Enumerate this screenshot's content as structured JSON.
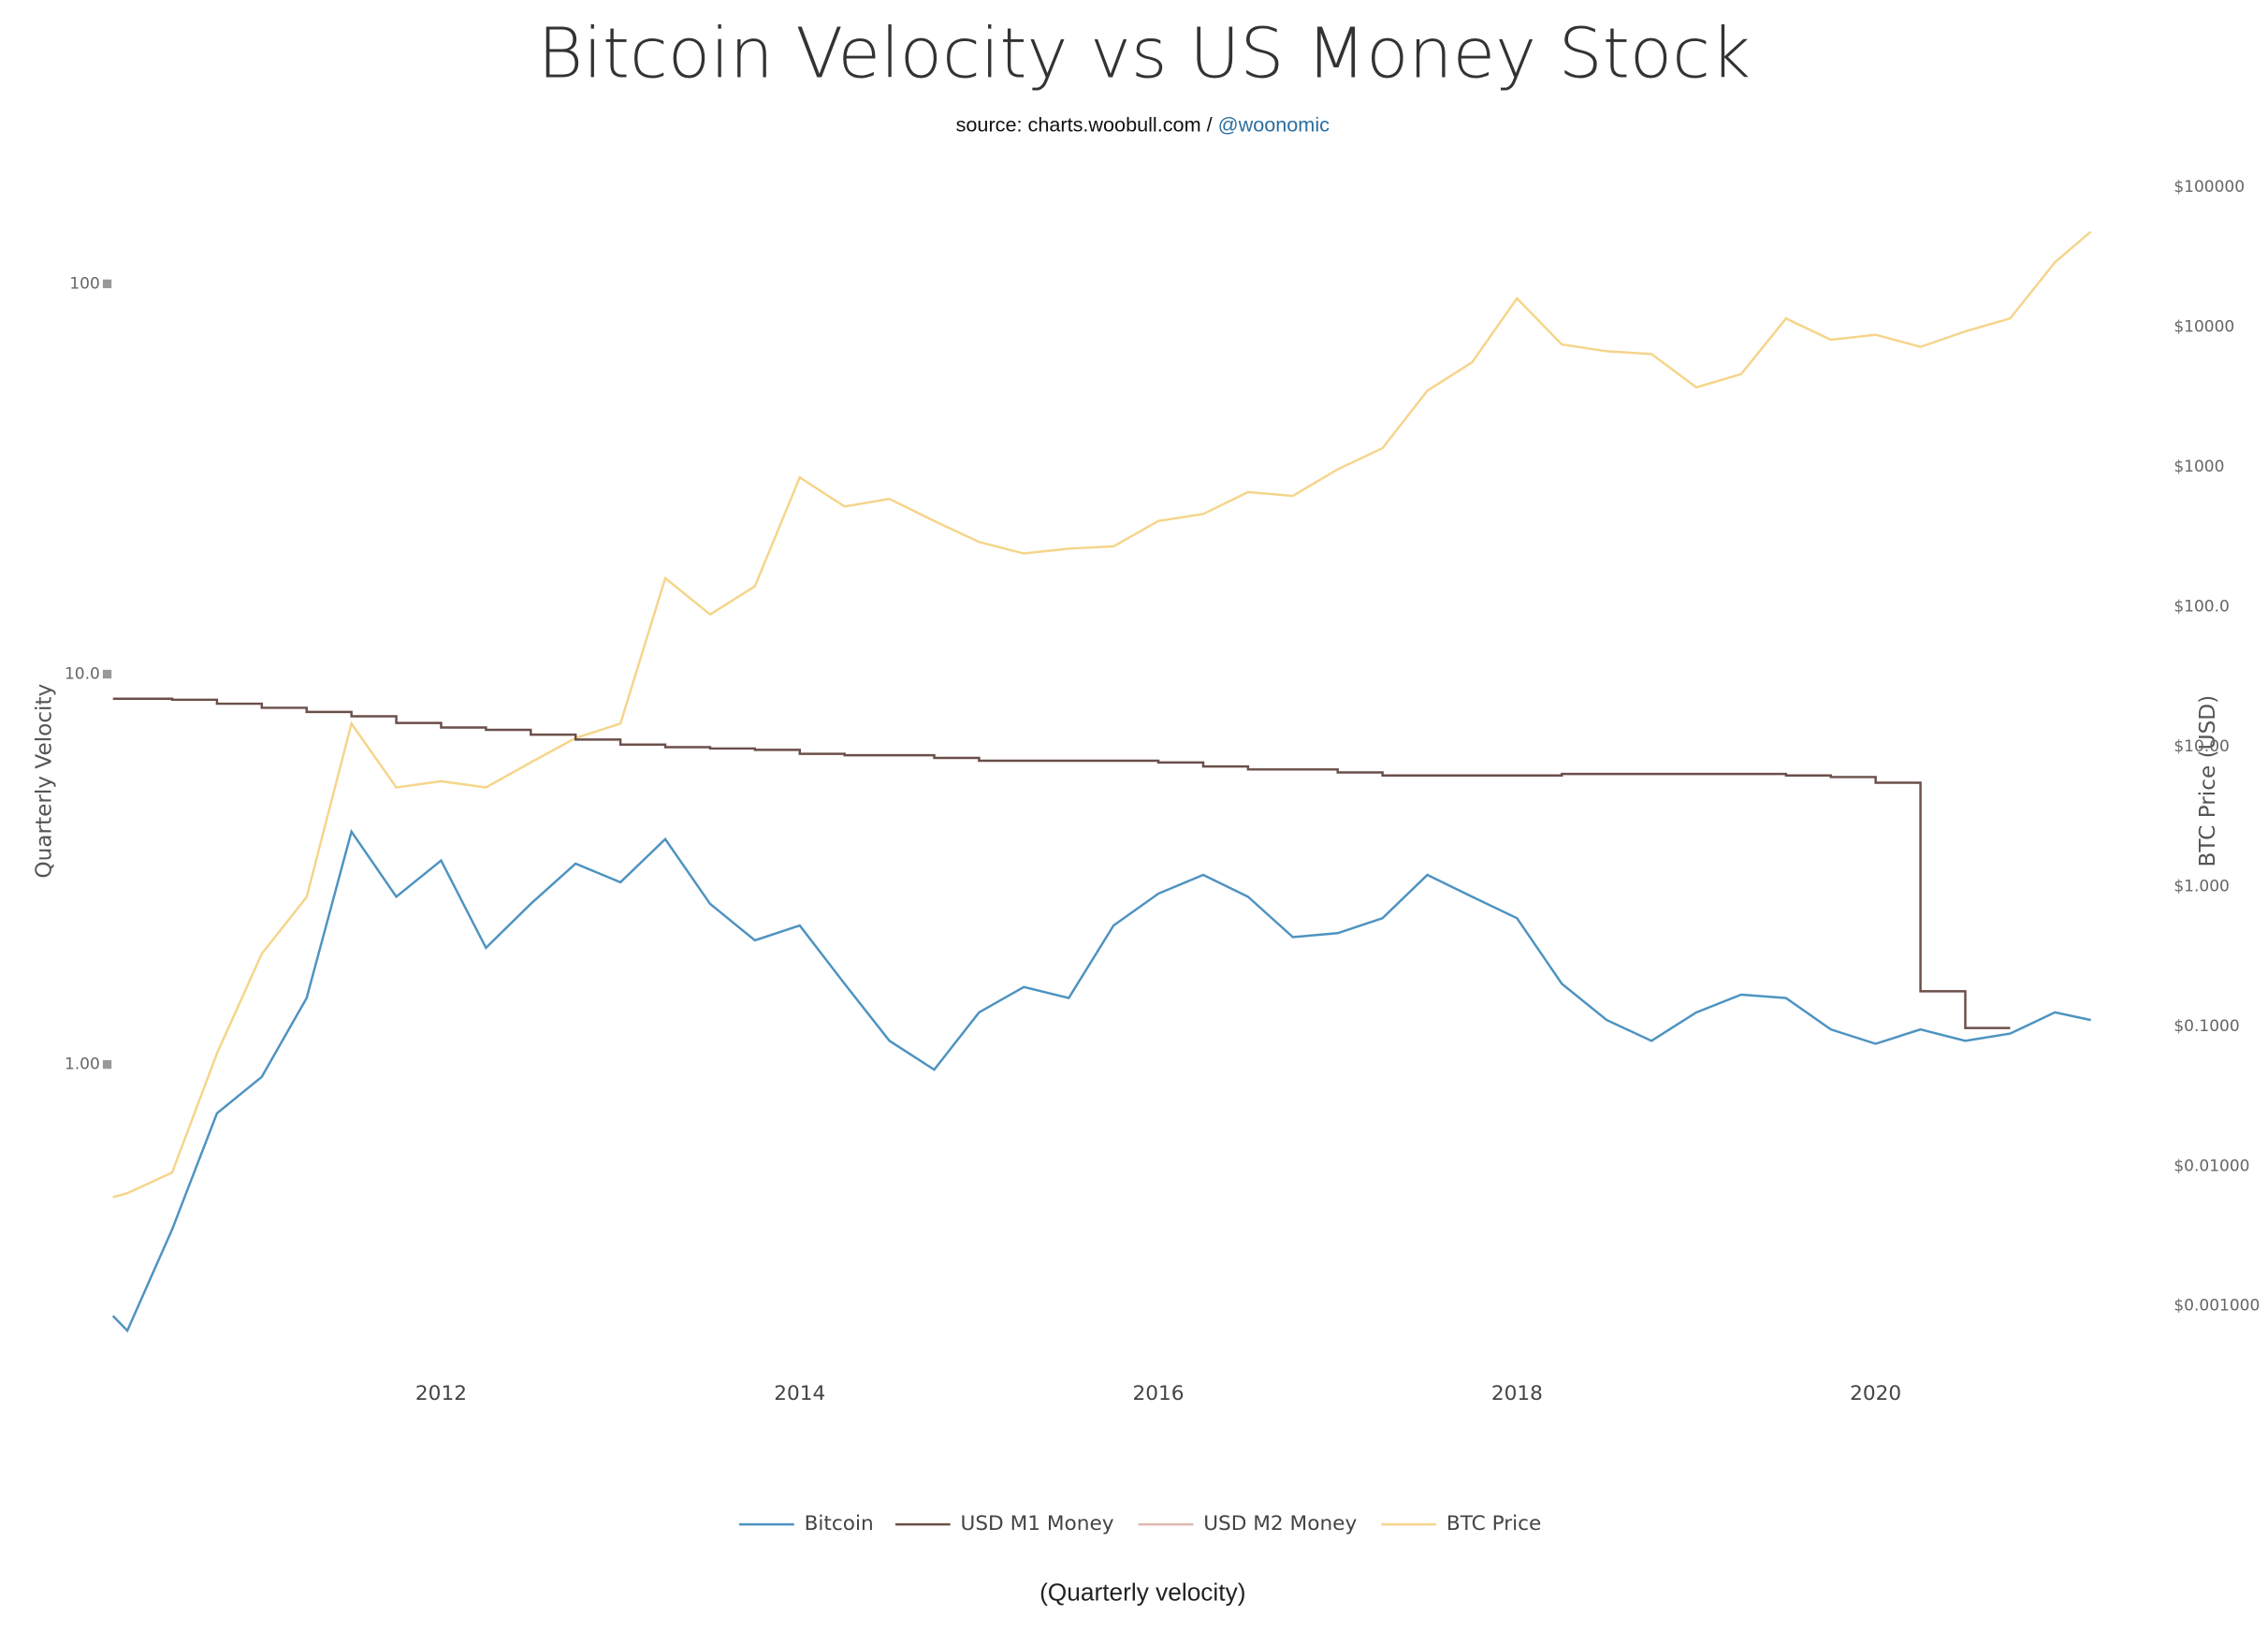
{
  "chart_data": {
    "type": "line",
    "title": "Bitcoin Velocity vs US Money Stock",
    "subtitle_source": "source: charts.woobull.com / ",
    "subtitle_handle": "@woonomic",
    "footer": "(Quarterly velocity)",
    "y_label": "Quarterly Velocity",
    "y2_label": "BTC Price (USD)",
    "log_y": true,
    "log_y2": true,
    "legend": "bottom",
    "x": [
      2010.17,
      2010.25,
      2010.5,
      2010.75,
      2011.0,
      2011.25,
      2011.5,
      2011.75,
      2012.0,
      2012.25,
      2012.5,
      2012.75,
      2013.0,
      2013.25,
      2013.5,
      2013.75,
      2014.0,
      2014.25,
      2014.5,
      2014.75,
      2015.0,
      2015.25,
      2015.5,
      2015.75,
      2016.0,
      2016.25,
      2016.5,
      2016.75,
      2017.0,
      2017.25,
      2017.5,
      2017.75,
      2018.0,
      2018.25,
      2018.5,
      2018.75,
      2019.0,
      2019.25,
      2019.5,
      2019.75,
      2020.0,
      2020.25,
      2020.5,
      2020.75,
      2021.0,
      2021.2
    ],
    "xlim": [
      2010.17,
      2021.3
    ],
    "xticks": [
      2012,
      2014,
      2016,
      2018,
      2020
    ],
    "ylim": [
      0.18,
      190
    ],
    "yticks": [
      {
        "value": 1,
        "label": "1.00"
      },
      {
        "value": 10,
        "label": "10.0"
      },
      {
        "value": 100,
        "label": "100"
      }
    ],
    "y2lim": [
      0.000445,
      122000
    ],
    "y2ticks": [
      {
        "value": 0.001,
        "label": "$0.001000"
      },
      {
        "value": 0.01,
        "label": "$0.01000"
      },
      {
        "value": 0.1,
        "label": "$0.1000"
      },
      {
        "value": 1,
        "label": "$1.000"
      },
      {
        "value": 10,
        "label": "$10.00"
      },
      {
        "value": 100,
        "label": "$100.0"
      },
      {
        "value": 1000,
        "label": "$1000"
      },
      {
        "value": 10000,
        "label": "$10000"
      },
      {
        "value": 100000,
        "label": "$100000"
      }
    ],
    "series": [
      {
        "name": "Bitcoin",
        "color": "#4e93c1",
        "visible": true,
        "values": [
          0.227,
          0.208,
          0.378,
          0.75,
          0.93,
          1.48,
          3.95,
          2.69,
          3.33,
          1.99,
          2.58,
          3.27,
          2.93,
          3.78,
          2.58,
          2.08,
          2.27,
          1.61,
          1.15,
          0.97,
          1.36,
          1.58,
          1.48,
          2.27,
          2.74,
          3.06,
          2.69,
          2.12,
          2.17,
          2.37,
          3.06,
          2.69,
          2.37,
          1.61,
          1.3,
          1.15,
          1.36,
          1.51,
          1.48,
          1.23,
          1.13,
          1.23,
          1.15,
          1.2,
          1.36,
          1.3
        ]
      },
      {
        "name": "USD M1 Money",
        "color": "#6b4f4a",
        "visible": true,
        "line_shape": "hv",
        "values": [
          8.65,
          8.65,
          8.6,
          8.4,
          8.2,
          8.0,
          7.8,
          7.5,
          7.3,
          7.2,
          7.0,
          6.8,
          6.6,
          6.5,
          6.45,
          6.4,
          6.25,
          6.2,
          6.2,
          6.1,
          6.0,
          6.0,
          6.0,
          6.0,
          5.94,
          5.8,
          5.7,
          5.7,
          5.6,
          5.5,
          5.5,
          5.5,
          5.5,
          5.55,
          5.55,
          5.55,
          5.55,
          5.55,
          5.5,
          5.45,
          5.27,
          1.54,
          1.24,
          1.24,
          null,
          null
        ]
      },
      {
        "name": "USD M2 Money",
        "color": "#e0b8b0",
        "visible": false,
        "values": [
          null,
          null,
          null,
          null,
          null,
          null,
          null,
          null,
          null,
          null,
          null,
          null,
          null,
          null,
          null,
          null,
          null,
          null,
          null,
          null,
          null,
          null,
          null,
          null,
          null,
          null,
          null,
          null,
          null,
          null,
          null,
          null,
          null,
          null,
          null,
          null,
          null,
          null,
          null,
          null,
          null,
          null,
          null,
          null,
          null,
          null
        ]
      },
      {
        "name": "BTC Price",
        "color": "#f5d58a",
        "visible": true,
        "axis": "y2",
        "values": [
          0.006,
          0.0064,
          0.009,
          0.064,
          0.33,
          0.84,
          14.6,
          5.1,
          5.65,
          5.1,
          7.7,
          11.5,
          14.6,
          160,
          88,
          140,
          840,
          520,
          590,
          410,
          290,
          240,
          260,
          270,
          410,
          460,
          660,
          620,
          960,
          1360,
          3500,
          5600,
          16000,
          7500,
          6700,
          6400,
          3700,
          4600,
          11500,
          8100,
          8800,
          7200,
          9300,
          11500,
          29000,
          48000
        ]
      }
    ]
  }
}
